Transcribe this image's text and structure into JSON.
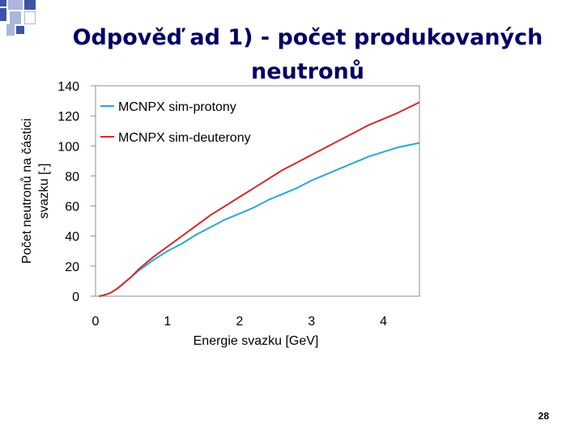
{
  "slide": {
    "title": "Odpověď ad 1) - počet produkovaných neutronů",
    "page_number": "28"
  },
  "colors": {
    "title": "#000066",
    "deco_blue": "#3c53a8",
    "deco_light": "#aab6db",
    "protony": "#29a8d6",
    "deuterony": "#d62a2a"
  },
  "chart_data": {
    "type": "line",
    "title": "",
    "xlabel": "Energie svazku [GeV]",
    "ylabel": "Počet neutronů na částici svazku [-]",
    "xlim": [
      0,
      4.5
    ],
    "ylim": [
      0,
      140
    ],
    "xticks": [
      0,
      1,
      2,
      3,
      4
    ],
    "yticks": [
      0,
      20,
      40,
      60,
      80,
      100,
      120,
      140
    ],
    "grid": false,
    "legend_position": "top-left",
    "series": [
      {
        "name": "MCNPX sim-protony",
        "color": "#29a8d6",
        "x": [
          0.05,
          0.1,
          0.2,
          0.3,
          0.4,
          0.5,
          0.6,
          0.8,
          1.0,
          1.2,
          1.4,
          1.6,
          1.8,
          2.0,
          2.2,
          2.4,
          2.6,
          2.8,
          3.0,
          3.2,
          3.4,
          3.6,
          3.8,
          4.0,
          4.2,
          4.5
        ],
        "y": [
          0,
          0.5,
          2,
          5,
          9,
          13,
          17,
          24,
          30,
          35,
          41,
          46,
          51,
          55,
          59,
          64,
          68,
          72,
          77,
          81,
          85,
          89,
          93,
          96,
          99,
          102
        ]
      },
      {
        "name": "MCNPX sim-deuterony",
        "color": "#d62a2a",
        "x": [
          0.05,
          0.1,
          0.2,
          0.3,
          0.4,
          0.5,
          0.6,
          0.8,
          1.0,
          1.2,
          1.4,
          1.6,
          1.8,
          2.0,
          2.2,
          2.4,
          2.6,
          2.8,
          3.0,
          3.2,
          3.4,
          3.6,
          3.8,
          4.0,
          4.2,
          4.5
        ],
        "y": [
          0,
          0.5,
          2,
          5,
          9,
          13,
          18,
          26,
          33,
          40,
          47,
          54,
          60,
          66,
          72,
          78,
          84,
          89,
          94,
          99,
          104,
          109,
          114,
          118,
          122,
          129
        ]
      }
    ]
  }
}
